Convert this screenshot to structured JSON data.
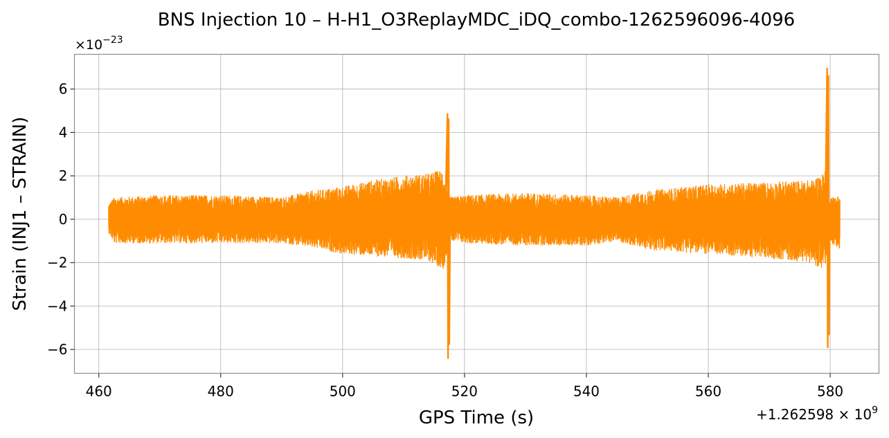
{
  "chart_data": {
    "type": "line",
    "title": "BNS Injection 10 – H-H1_O3ReplayMDC_iDQ_combo-1262596096-4096",
    "xlabel": "GPS Time (s)",
    "ylabel": "Strain (INJ1 – STRAIN)",
    "x_offset_label": "+1.262598 × 10",
    "x_offset_exp": "9",
    "y_scale_label": "×10",
    "y_scale_exp": "−23",
    "xlim": [
      456,
      588
    ],
    "ylim": [
      -7.1,
      7.6
    ],
    "x_ticks": [
      {
        "value": 460,
        "label": "460"
      },
      {
        "value": 480,
        "label": "480"
      },
      {
        "value": 500,
        "label": "500"
      },
      {
        "value": 520,
        "label": "520"
      },
      {
        "value": 540,
        "label": "540"
      },
      {
        "value": 560,
        "label": "560"
      },
      {
        "value": 580,
        "label": "580"
      }
    ],
    "y_ticks": [
      {
        "value": -6,
        "label": "−6"
      },
      {
        "value": -4,
        "label": "−4"
      },
      {
        "value": -2,
        "label": "−2"
      },
      {
        "value": 0,
        "label": "0"
      },
      {
        "value": 2,
        "label": "2"
      },
      {
        "value": 4,
        "label": "4"
      },
      {
        "value": 6,
        "label": "6"
      }
    ],
    "grid": true,
    "series": [
      {
        "color": "#ff8c00",
        "x_start": 461.6,
        "x_end": 581.6,
        "envelope": [
          {
            "x": 461.6,
            "upper": 0.7,
            "lower": -0.6
          },
          {
            "x": 462.5,
            "upper": 1.0,
            "lower": -1.1
          },
          {
            "x": 470,
            "upper": 1.1,
            "lower": -1.1
          },
          {
            "x": 480,
            "upper": 1.1,
            "lower": -1.1
          },
          {
            "x": 490,
            "upper": 1.0,
            "lower": -1.1
          },
          {
            "x": 495,
            "upper": 1.3,
            "lower": -1.3
          },
          {
            "x": 500,
            "upper": 1.5,
            "lower": -1.6
          },
          {
            "x": 505,
            "upper": 1.8,
            "lower": -1.7
          },
          {
            "x": 510,
            "upper": 2.0,
            "lower": -1.8
          },
          {
            "x": 514,
            "upper": 2.1,
            "lower": -1.9
          },
          {
            "x": 516.5,
            "upper": 2.3,
            "lower": -2.3
          },
          {
            "x": 517.6,
            "upper": 1.0,
            "lower": -1.0
          },
          {
            "x": 520,
            "upper": 1.1,
            "lower": -1.1
          },
          {
            "x": 530,
            "upper": 1.2,
            "lower": -1.2
          },
          {
            "x": 540,
            "upper": 1.1,
            "lower": -1.2
          },
          {
            "x": 545,
            "upper": 1.0,
            "lower": -1.0
          },
          {
            "x": 550,
            "upper": 1.3,
            "lower": -1.4
          },
          {
            "x": 560,
            "upper": 1.6,
            "lower": -1.6
          },
          {
            "x": 570,
            "upper": 1.7,
            "lower": -1.8
          },
          {
            "x": 577,
            "upper": 1.8,
            "lower": -2.0
          },
          {
            "x": 579.2,
            "upper": 2.2,
            "lower": -2.4
          },
          {
            "x": 579.8,
            "upper": 1.0,
            "lower": -1.0
          },
          {
            "x": 581.6,
            "upper": 1.1,
            "lower": -1.4
          }
        ],
        "spikes": [
          {
            "x": 517.3,
            "max": 4.85,
            "min": -6.4
          },
          {
            "x": 579.6,
            "max": 6.95,
            "min": -5.9
          }
        ]
      }
    ]
  }
}
